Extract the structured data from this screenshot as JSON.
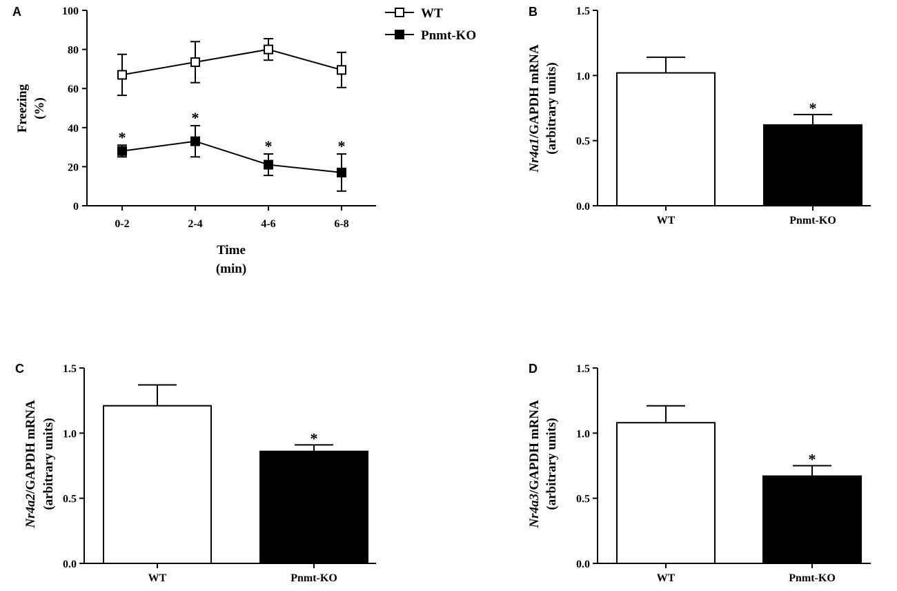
{
  "chart_data": [
    {
      "panel": "A",
      "type": "line",
      "categories": [
        "0-2",
        "2-4",
        "4-6",
        "6-8"
      ],
      "series": [
        {
          "name": "WT",
          "marker": "open-square",
          "values": [
            67,
            73.5,
            80,
            69.5
          ],
          "errors": [
            10.5,
            10.5,
            5.5,
            9
          ],
          "significant": [
            false,
            false,
            false,
            false
          ]
        },
        {
          "name": "Pnmt-KO",
          "marker": "filled-square",
          "values": [
            28,
            33,
            21,
            17
          ],
          "errors": [
            3,
            8,
            5.5,
            9.5
          ],
          "significant": [
            true,
            true,
            true,
            true
          ]
        }
      ],
      "xlabel": [
        "Time",
        "(min)"
      ],
      "ylabel": [
        "Freezing",
        "(%)"
      ],
      "ylim": [
        0,
        100
      ],
      "yticks": [
        0,
        20,
        40,
        60,
        80,
        100
      ],
      "legend": "top-right",
      "significance_mark": "*"
    },
    {
      "panel": "B",
      "type": "bar",
      "categories": [
        "WT",
        "Pnmt-KO"
      ],
      "values": [
        1.02,
        0.62
      ],
      "errors": [
        0.12,
        0.08
      ],
      "significant": [
        false,
        true
      ],
      "colors": [
        "#ffffff",
        "#000000"
      ],
      "ylabel": {
        "gene": "Nr4a1",
        "rest": "/GAPDH mRNA",
        "units": "(arbitrary units)"
      },
      "ylim": [
        0,
        1.5
      ],
      "yticks": [
        "0.0",
        "0.5",
        "1.0",
        "1.5"
      ],
      "significance_mark": "*"
    },
    {
      "panel": "C",
      "type": "bar",
      "categories": [
        "WT",
        "Pnmt-KO"
      ],
      "values": [
        1.21,
        0.86
      ],
      "errors": [
        0.16,
        0.05
      ],
      "significant": [
        false,
        true
      ],
      "colors": [
        "#ffffff",
        "#000000"
      ],
      "ylabel": {
        "gene": "Nr4a2",
        "rest": "/GAPDH mRNA",
        "units": "(arbitrary units)"
      },
      "ylim": [
        0,
        1.5
      ],
      "yticks": [
        "0.0",
        "0.5",
        "1.0",
        "1.5"
      ],
      "significance_mark": "*"
    },
    {
      "panel": "D",
      "type": "bar",
      "categories": [
        "WT",
        "Pnmt-KO"
      ],
      "values": [
        1.08,
        0.67
      ],
      "errors": [
        0.13,
        0.08
      ],
      "significant": [
        false,
        true
      ],
      "colors": [
        "#ffffff",
        "#000000"
      ],
      "ylabel": {
        "gene": "Nr4a3",
        "rest": "/GAPDH mRNA",
        "units": "(arbitrary units)"
      },
      "ylim": [
        0,
        1.5
      ],
      "yticks": [
        "0.0",
        "0.5",
        "1.0",
        "1.5"
      ],
      "significance_mark": "*"
    }
  ]
}
